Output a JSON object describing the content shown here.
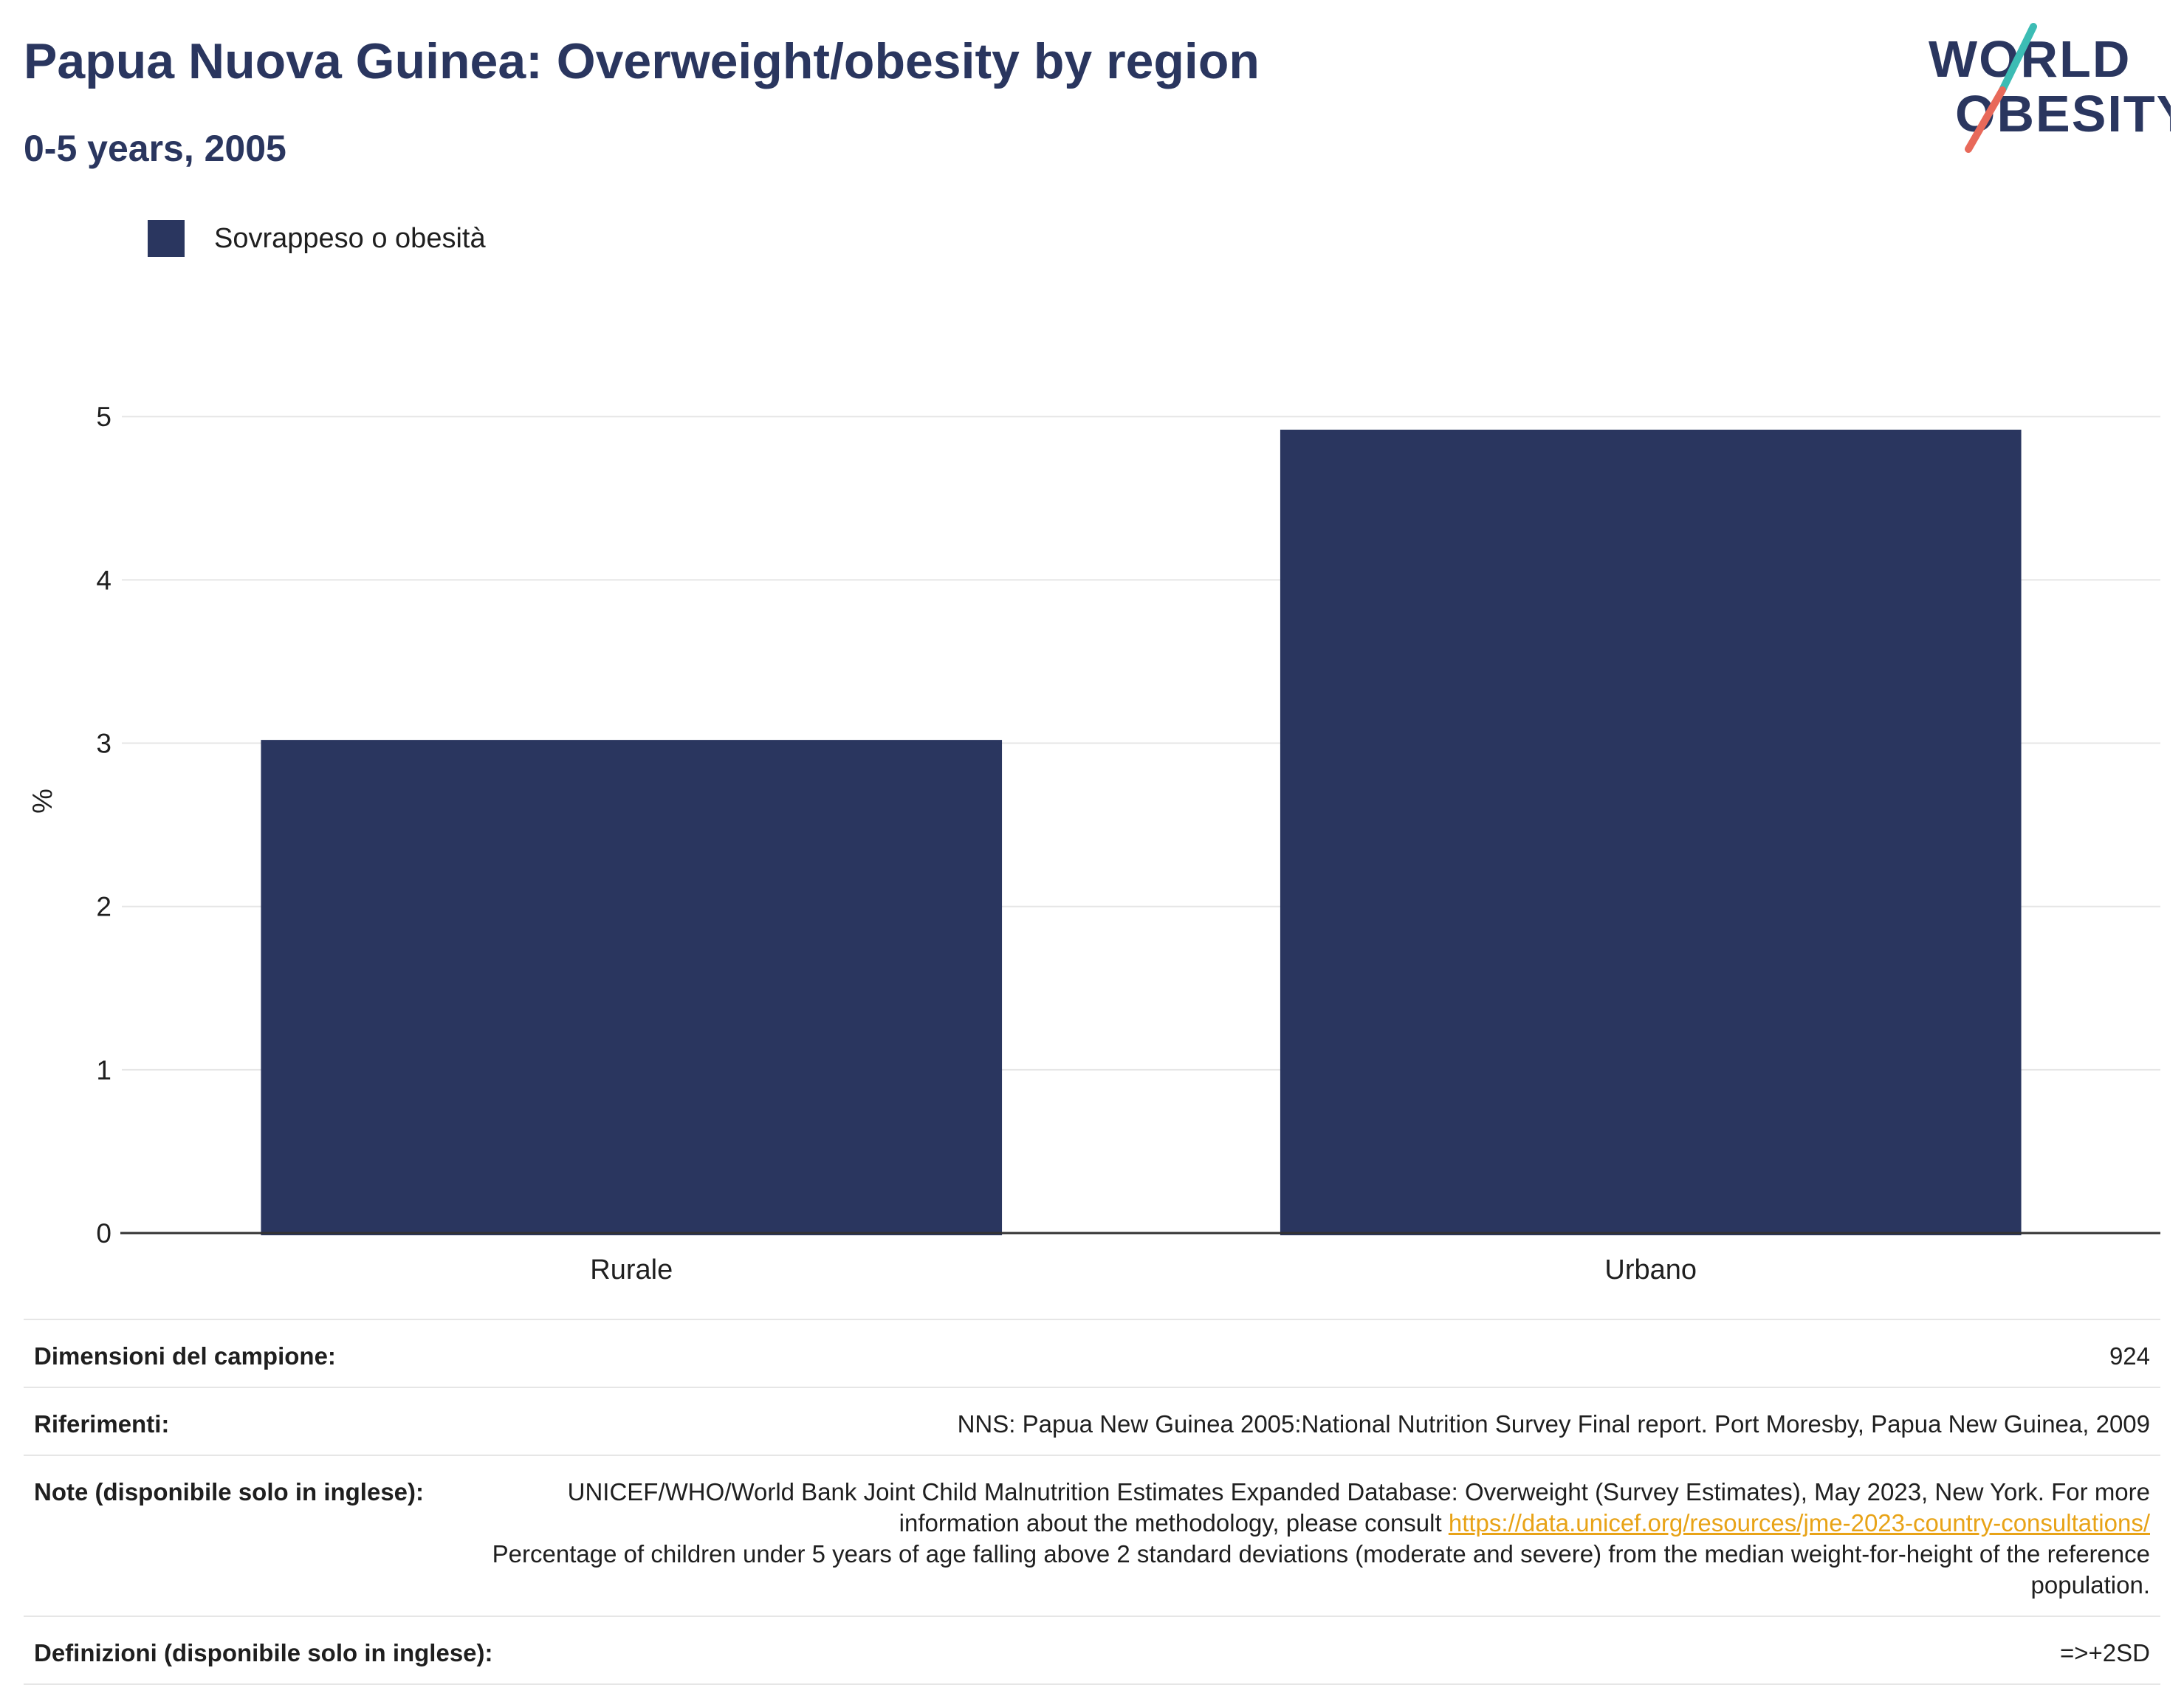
{
  "header": {
    "title": "Papua Nuova Guinea: Overweight/obesity by region",
    "subtitle": "0-5 years, 2005"
  },
  "logo": {
    "line1": "WORLD",
    "line2": "OBESITY",
    "colors": {
      "text": "#2a365f",
      "slash_top": "#3cbcb4",
      "slash_bottom": "#e8695a"
    }
  },
  "colors": {
    "bar": "#2a365f",
    "grid": "#e6e6e6",
    "axis": "#333333",
    "text": "#1f1f1f",
    "link": "#e8a317"
  },
  "chart_data": {
    "type": "bar",
    "categories": [
      "Rurale",
      "Urbano"
    ],
    "series": [
      {
        "name": "Sovrappeso o obesità",
        "values": [
          3.02,
          4.92
        ]
      }
    ],
    "xlabel": "",
    "ylabel": "%",
    "ylim": [
      0,
      5.2
    ],
    "yticks": [
      0,
      1,
      2,
      3,
      4,
      5
    ],
    "grid": true,
    "legend_position": "top-left"
  },
  "info": {
    "sample_label": "Dimensioni del campione:",
    "sample_value": "924",
    "references_label": "Riferimenti:",
    "references_value": "NNS: Papua New Guinea 2005:National Nutrition Survey Final report. Port Moresby, Papua New Guinea, 2009",
    "notes_label": "Note (disponibile solo in inglese):",
    "notes_text1": "UNICEF/WHO/World Bank Joint Child Malnutrition Estimates Expanded Database: Overweight (Survey Estimates), May 2023, New York. For more information about the methodology, please consult",
    "notes_link": "https://data.unicef.org/resources/jme-2023-country-consultations/",
    "notes_text2": "Percentage of children under 5 years of age falling above 2 standard deviations (moderate and severe) from the median weight-for-height of the reference population.",
    "definitions_label": "Definizioni (disponibile solo in inglese):",
    "definitions_value": "=>+2SD"
  }
}
